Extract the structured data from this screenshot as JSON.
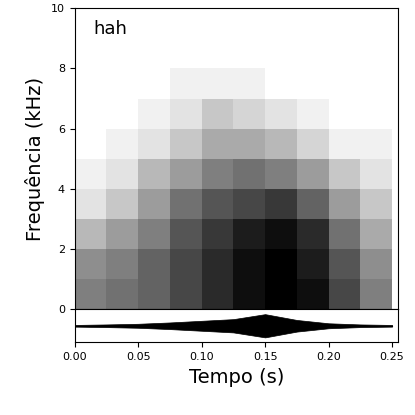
{
  "chart_data": [
    {
      "type": "heatmap",
      "annotation": "hah",
      "y_label": "Frequência (kHz)",
      "x_edges": [
        0.0,
        0.025,
        0.05,
        0.075,
        0.1,
        0.125,
        0.15,
        0.175,
        0.2,
        0.225,
        0.25
      ],
      "y_edges": [
        0,
        1,
        2,
        3,
        4,
        5,
        6,
        7,
        8,
        9,
        10
      ],
      "cells": [
        [
          0.45,
          0.5,
          0.55,
          0.65,
          0.75,
          0.85,
          0.9,
          0.85,
          0.65,
          0.45
        ],
        [
          0.4,
          0.45,
          0.55,
          0.65,
          0.75,
          0.85,
          0.9,
          0.8,
          0.6,
          0.4
        ],
        [
          0.25,
          0.35,
          0.45,
          0.6,
          0.7,
          0.8,
          0.85,
          0.75,
          0.5,
          0.3
        ],
        [
          0.1,
          0.2,
          0.35,
          0.5,
          0.6,
          0.65,
          0.7,
          0.55,
          0.35,
          0.2
        ],
        [
          0.05,
          0.1,
          0.25,
          0.35,
          0.45,
          0.5,
          0.45,
          0.35,
          0.2,
          0.1
        ],
        [
          0,
          0.05,
          0.1,
          0.2,
          0.3,
          0.3,
          0.25,
          0.15,
          0.05,
          0.05
        ],
        [
          0,
          0,
          0.05,
          0.1,
          0.2,
          0.15,
          0.1,
          0.05,
          0,
          0
        ],
        [
          0,
          0,
          0,
          0.05,
          0.05,
          0.05,
          0,
          0,
          0,
          0
        ],
        [
          0,
          0,
          0,
          0,
          0,
          0,
          0,
          0,
          0,
          0
        ],
        [
          0,
          0,
          0,
          0,
          0,
          0,
          0,
          0,
          0,
          0
        ]
      ],
      "xlim": [
        0,
        0.255
      ],
      "ylim": [
        0,
        10
      ],
      "yticks": [
        0,
        2,
        4,
        6,
        8,
        10
      ],
      "tick_labels": "y"
    },
    {
      "type": "area",
      "x_label": "Tempo (s)",
      "x": [
        0.0,
        0.025,
        0.05,
        0.075,
        0.1,
        0.125,
        0.15,
        0.175,
        0.2,
        0.225,
        0.25
      ],
      "values": [
        0.05,
        0.08,
        0.12,
        0.2,
        0.3,
        0.4,
        0.7,
        0.35,
        0.15,
        0.08,
        0.05
      ],
      "color": "#000000",
      "xlim": [
        0,
        0.255
      ],
      "ylim": [
        -1,
        1
      ],
      "xticks": [
        {
          "value": 0.0,
          "label": "0.00"
        },
        0.05,
        {
          "value": 0.1,
          "label": "0.10"
        },
        0.15,
        {
          "value": 0.2,
          "label": "0.20"
        },
        0.25
      ],
      "yticks": [],
      "tick_labels": "x"
    }
  ]
}
